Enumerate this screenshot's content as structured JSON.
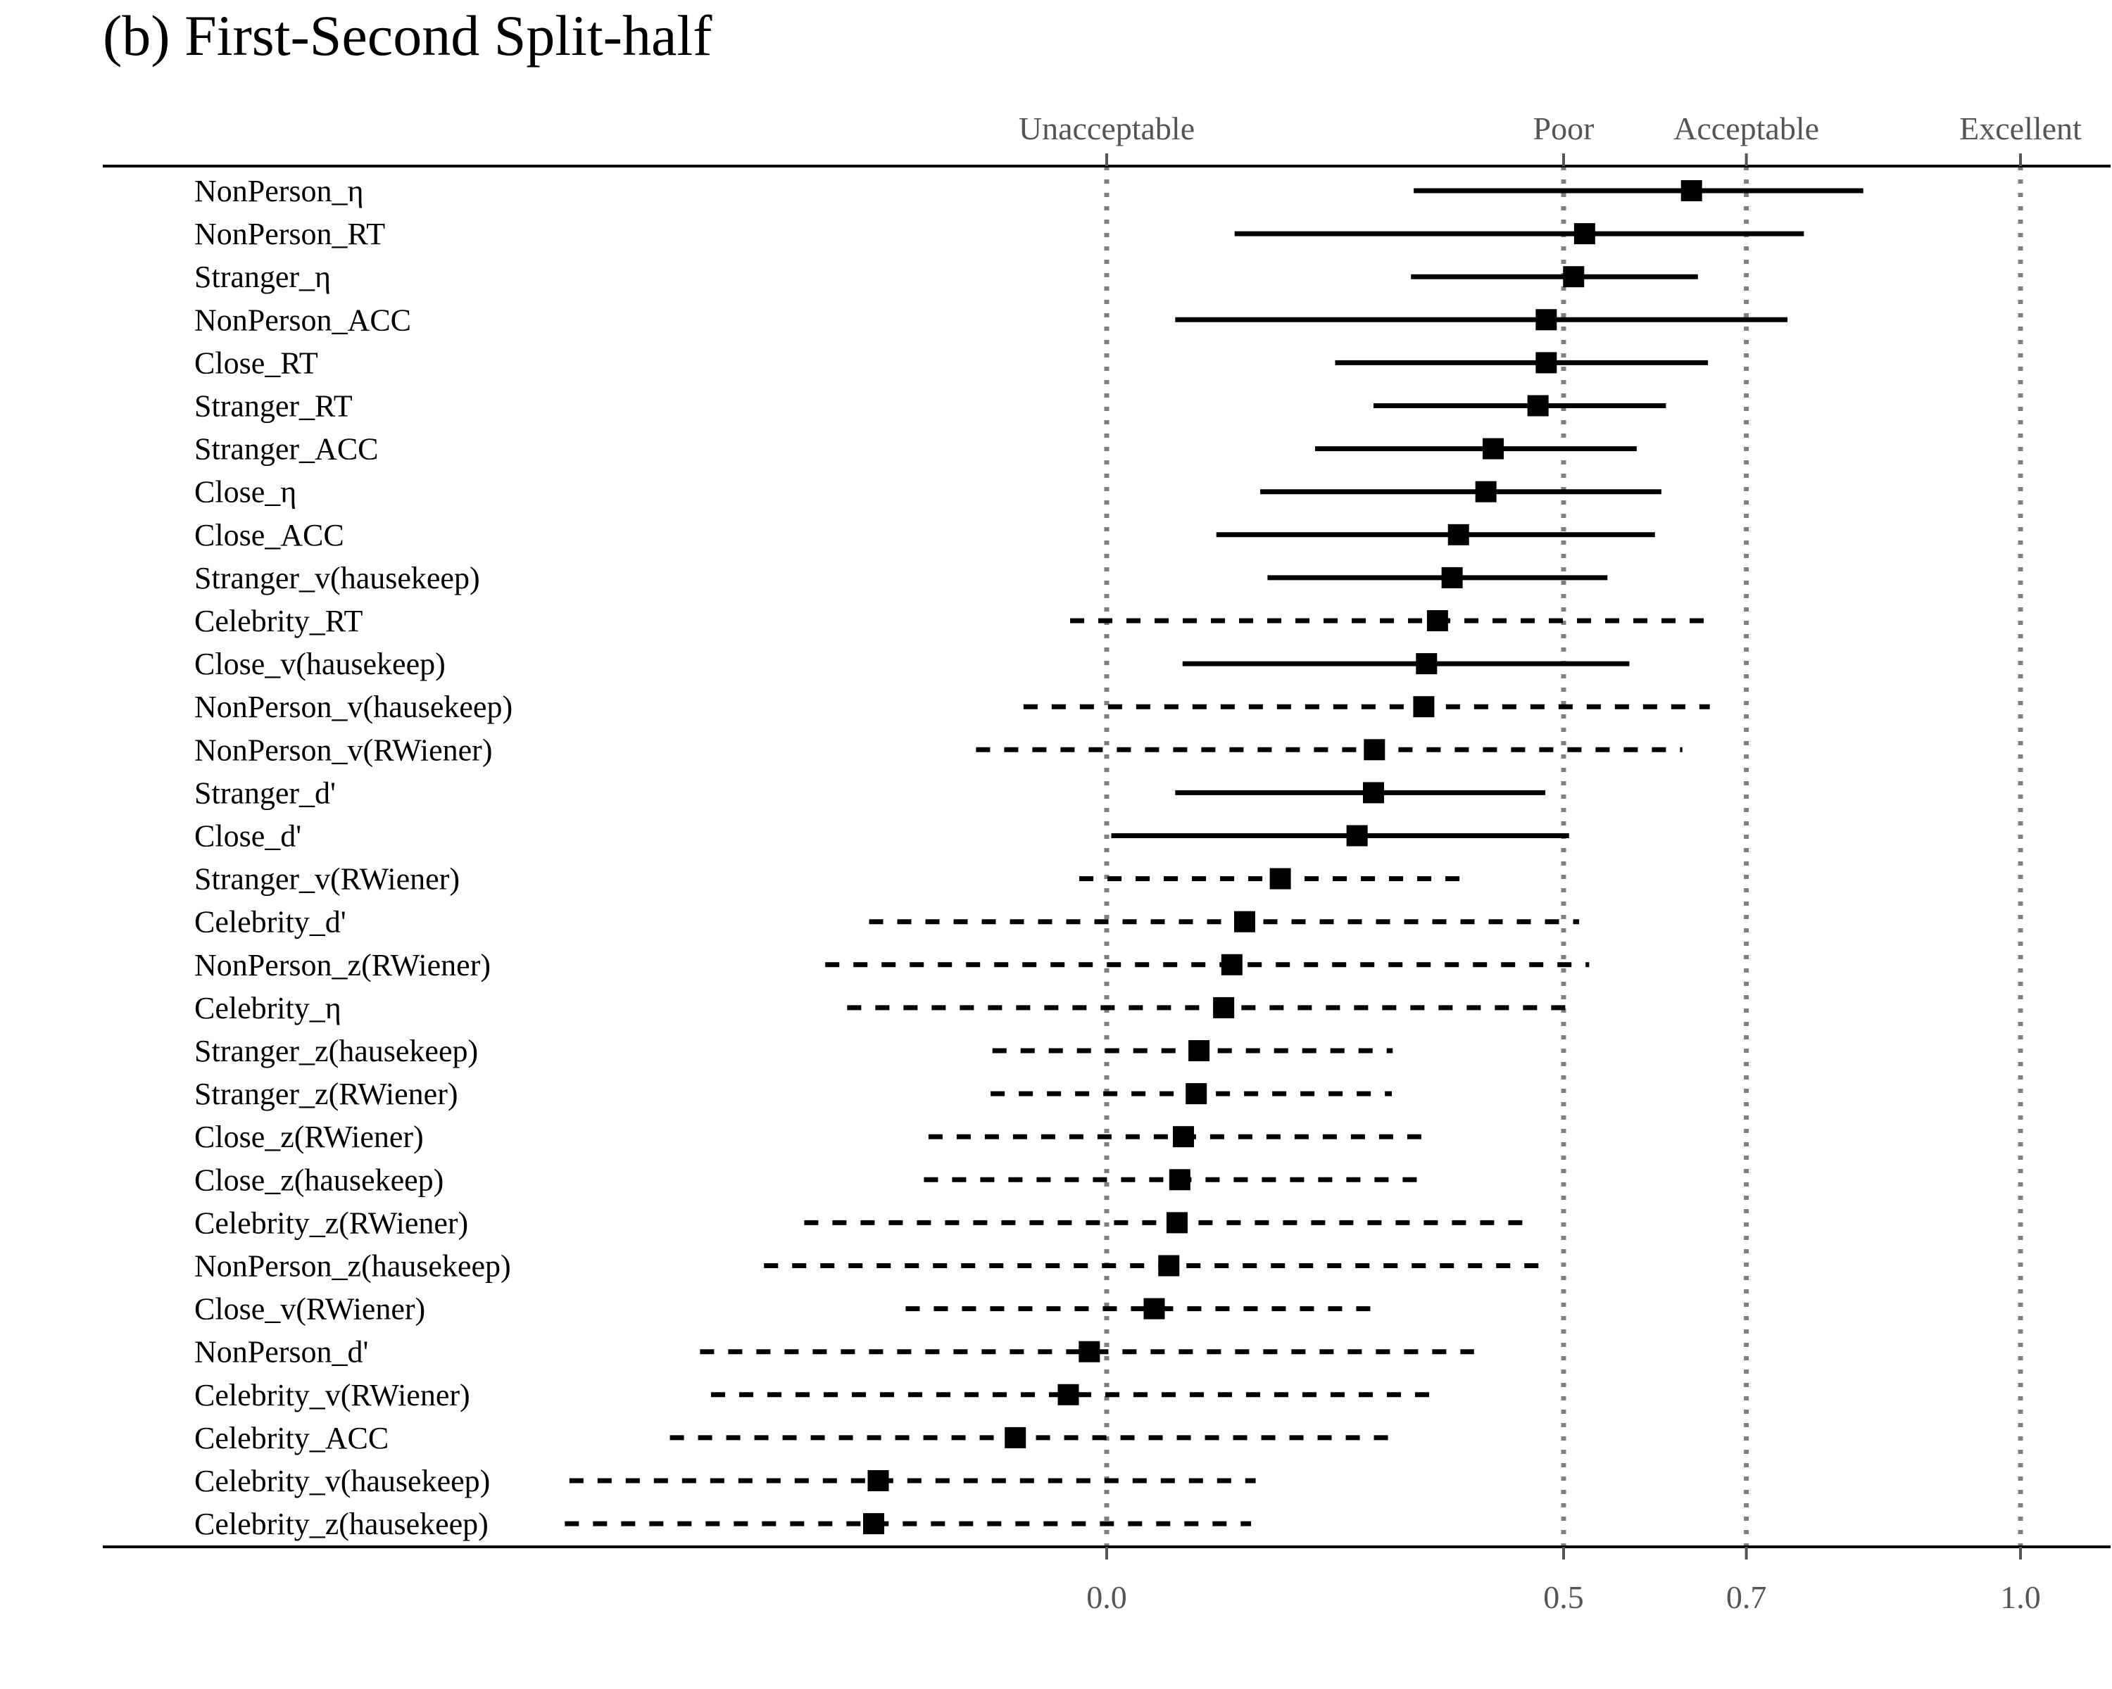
{
  "chart_data": {
    "type": "forest",
    "title": "(b) First-Second Split-half",
    "xlabel": "",
    "ylabel": "",
    "x_ticks": [
      0.0,
      0.5,
      0.7,
      1.0
    ],
    "x_tick_labels": [
      "0.0",
      "0.5",
      "0.7",
      "1.0"
    ],
    "reference_lines": [
      {
        "label": "Unacceptable",
        "value": 0.0
      },
      {
        "label": "Poor",
        "value": 0.5
      },
      {
        "label": "Acceptable",
        "value": 0.7
      },
      {
        "label": "Excellent",
        "value": 1.0
      }
    ],
    "line_styles": {
      "solid": "CI excludes 0",
      "dashed": "CI includes 0"
    },
    "rows": [
      {
        "label": "NonPerson_η",
        "estimate": 0.64,
        "lower": 0.336,
        "upper": 0.828,
        "style": "solid"
      },
      {
        "label": "NonPerson_RT",
        "estimate": 0.523,
        "lower": 0.14,
        "upper": 0.763,
        "style": "solid"
      },
      {
        "label": "Stranger_η",
        "estimate": 0.511,
        "lower": 0.333,
        "upper": 0.647,
        "style": "solid"
      },
      {
        "label": "NonPerson_ACC",
        "estimate": 0.481,
        "lower": 0.075,
        "upper": 0.745,
        "style": "solid"
      },
      {
        "label": "Close_RT",
        "estimate": 0.481,
        "lower": 0.25,
        "upper": 0.658,
        "style": "solid"
      },
      {
        "label": "Stranger_RT",
        "estimate": 0.472,
        "lower": 0.292,
        "upper": 0.612,
        "style": "solid"
      },
      {
        "label": "Stranger_ACC",
        "estimate": 0.423,
        "lower": 0.228,
        "upper": 0.58,
        "style": "solid"
      },
      {
        "label": "Close_η",
        "estimate": 0.415,
        "lower": 0.168,
        "upper": 0.607,
        "style": "solid"
      },
      {
        "label": "Close_ACC",
        "estimate": 0.385,
        "lower": 0.12,
        "upper": 0.6,
        "style": "solid"
      },
      {
        "label": "Stranger_v(hausekeep)",
        "estimate": 0.378,
        "lower": 0.176,
        "upper": 0.548,
        "style": "solid"
      },
      {
        "label": "Celebrity_RT",
        "estimate": 0.362,
        "lower": -0.04,
        "upper": 0.66,
        "style": "dashed"
      },
      {
        "label": "Close_v(hausekeep)",
        "estimate": 0.35,
        "lower": 0.083,
        "upper": 0.572,
        "style": "solid"
      },
      {
        "label": "NonPerson_v(hausekeep)",
        "estimate": 0.347,
        "lower": -0.091,
        "upper": 0.66,
        "style": "dashed"
      },
      {
        "label": "NonPerson_v(RWiener)",
        "estimate": 0.293,
        "lower": -0.143,
        "upper": 0.63,
        "style": "dashed"
      },
      {
        "label": "Stranger_d'",
        "estimate": 0.292,
        "lower": 0.075,
        "upper": 0.48,
        "style": "solid"
      },
      {
        "label": "Close_d'",
        "estimate": 0.274,
        "lower": 0.005,
        "upper": 0.506,
        "style": "solid"
      },
      {
        "label": "Stranger_v(RWiener)",
        "estimate": 0.19,
        "lower": -0.03,
        "upper": 0.39,
        "style": "dashed"
      },
      {
        "label": "Celebrity_d'",
        "estimate": 0.151,
        "lower": -0.26,
        "upper": 0.517,
        "style": "dashed"
      },
      {
        "label": "NonPerson_z(RWiener)",
        "estimate": 0.137,
        "lower": -0.308,
        "upper": 0.528,
        "style": "dashed"
      },
      {
        "label": "Celebrity_η",
        "estimate": 0.128,
        "lower": -0.284,
        "upper": 0.502,
        "style": "dashed"
      },
      {
        "label": "Stranger_z(hausekeep)",
        "estimate": 0.101,
        "lower": -0.125,
        "upper": 0.313,
        "style": "dashed"
      },
      {
        "label": "Stranger_z(RWiener)",
        "estimate": 0.098,
        "lower": -0.127,
        "upper": 0.312,
        "style": "dashed"
      },
      {
        "label": "Close_z(RWiener)",
        "estimate": 0.084,
        "lower": -0.195,
        "upper": 0.357,
        "style": "dashed"
      },
      {
        "label": "Close_z(hausekeep)",
        "estimate": 0.08,
        "lower": -0.2,
        "upper": 0.347,
        "style": "dashed"
      },
      {
        "label": "Celebrity_z(RWiener)",
        "estimate": 0.077,
        "lower": -0.331,
        "upper": 0.46,
        "style": "dashed"
      },
      {
        "label": "NonPerson_z(hausekeep)",
        "estimate": 0.068,
        "lower": -0.375,
        "upper": 0.485,
        "style": "dashed"
      },
      {
        "label": "Close_v(RWiener)",
        "estimate": 0.052,
        "lower": -0.22,
        "upper": 0.3,
        "style": "dashed"
      },
      {
        "label": "NonPerson_d'",
        "estimate": -0.019,
        "lower": -0.445,
        "upper": 0.402,
        "style": "dashed"
      },
      {
        "label": "Celebrity_v(RWiener)",
        "estimate": -0.042,
        "lower": -0.433,
        "upper": 0.364,
        "style": "dashed"
      },
      {
        "label": "Celebrity_ACC",
        "estimate": -0.1,
        "lower": -0.478,
        "upper": 0.31,
        "style": "dashed"
      },
      {
        "label": "Celebrity_v(hausekeep)",
        "estimate": -0.25,
        "lower": -0.588,
        "upper": 0.163,
        "style": "dashed"
      },
      {
        "label": "Celebrity_z(hausekeep)",
        "estimate": -0.255,
        "lower": -0.593,
        "upper": 0.158,
        "style": "dashed"
      }
    ]
  }
}
